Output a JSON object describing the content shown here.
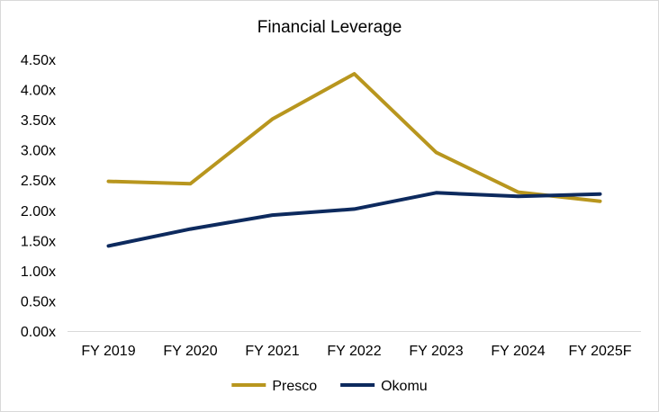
{
  "chart_data": {
    "type": "line",
    "title": "Financial Leverage",
    "xlabel": "",
    "ylabel": "",
    "categories": [
      "FY 2019",
      "FY 2020",
      "FY 2021",
      "FY 2022",
      "FY 2023",
      "FY 2024",
      "FY 2025F"
    ],
    "ylim": [
      0,
      4.5
    ],
    "y_ticks": [
      "0.00x",
      "0.50x",
      "1.00x",
      "1.50x",
      "2.00x",
      "2.50x",
      "3.00x",
      "3.50x",
      "4.00x",
      "4.50x"
    ],
    "grid": false,
    "legend_position": "bottom",
    "series": [
      {
        "name": "Presco",
        "color": "#B8961E",
        "values": [
          2.48,
          2.44,
          3.51,
          4.26,
          2.96,
          2.3,
          2.15
        ]
      },
      {
        "name": "Okomu",
        "color": "#0D2A5E",
        "values": [
          1.41,
          1.69,
          1.92,
          2.02,
          2.29,
          2.23,
          2.27
        ]
      }
    ]
  }
}
